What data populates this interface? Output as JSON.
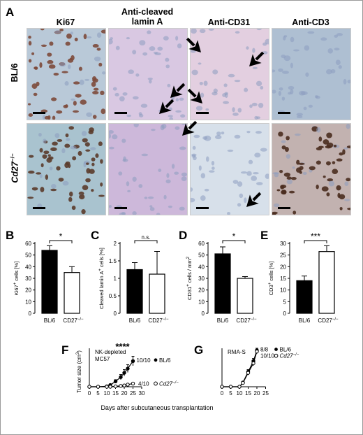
{
  "panel_a": {
    "label": "A",
    "columns": [
      "Ki67",
      "Anti-cleaved lamin A",
      "Anti-CD31",
      "Anti-CD3"
    ],
    "column_head_lines": [
      [
        "Ki67"
      ],
      [
        "Anti-cleaved",
        "lamin A"
      ],
      [
        "Anti-CD31"
      ],
      [
        "Anti-CD3"
      ]
    ],
    "rows": [
      {
        "main": "BL/6",
        "sup": ""
      },
      {
        "main": "Cd27",
        "sup": "−/−"
      }
    ]
  },
  "chart_data": [
    {
      "panel": "B",
      "type": "bar",
      "categories": [
        "BL/6",
        "CD27−/−"
      ],
      "values": [
        54,
        35
      ],
      "errors": [
        4,
        5
      ],
      "ylabel": "Ki67+ cells [%]",
      "ylim": [
        0,
        60
      ],
      "yticks": [
        0,
        10,
        20,
        30,
        40,
        50,
        60
      ],
      "significance": "*"
    },
    {
      "panel": "C",
      "type": "bar",
      "categories": [
        "BL/6",
        "CD27−/−"
      ],
      "values": [
        1.25,
        1.12
      ],
      "errors": [
        0.2,
        0.65
      ],
      "ylabel": "Cleaved lamin A+ cells [%]",
      "ylim": [
        0,
        2.0
      ],
      "yticks": [
        0,
        0.5,
        1.0,
        1.5,
        2.0
      ],
      "significance": "n.s."
    },
    {
      "panel": "D",
      "type": "bar",
      "categories": [
        "BL/6",
        "CD27−/−"
      ],
      "values": [
        51,
        30
      ],
      "errors": [
        6,
        1.5
      ],
      "ylabel": "CD31+ cells / mm2",
      "ylim": [
        0,
        60
      ],
      "yticks": [
        0,
        10,
        20,
        30,
        40,
        50,
        60
      ],
      "significance": "*"
    },
    {
      "panel": "E",
      "type": "bar",
      "categories": [
        "BL/6",
        "CD27−/−"
      ],
      "values": [
        14,
        26.5
      ],
      "errors": [
        2,
        2.5
      ],
      "ylabel": "CD3+ cells [%]",
      "ylim": [
        0,
        30
      ],
      "yticks": [
        0,
        5,
        10,
        15,
        20,
        25,
        30
      ],
      "significance": "***"
    },
    {
      "panel": "F",
      "type": "line",
      "x": [
        0,
        5,
        10,
        12,
        15,
        18,
        20,
        22,
        25
      ],
      "xticks": [
        0,
        5,
        10,
        15,
        20,
        25,
        30
      ],
      "ylabel": "Tumor size (cm3)",
      "annotation": "NK-depleted MC57",
      "significance": "****",
      "series": [
        {
          "name": "BL/6",
          "count": "10/10",
          "y": [
            0,
            0,
            0.02,
            0.08,
            0.25,
            0.45,
            0.65,
            0.85,
            1.2
          ],
          "err": [
            0,
            0,
            0.02,
            0.05,
            0.08,
            0.12,
            0.15,
            0.18,
            0.22
          ]
        },
        {
          "name": "Cd27−/−",
          "count": "4/10",
          "y": [
            0,
            0,
            0,
            0,
            0.02,
            0.04,
            0.06,
            0.1,
            0.15
          ],
          "err": [
            0,
            0,
            0,
            0,
            0.01,
            0.02,
            0.02,
            0.03,
            0.04
          ]
        }
      ]
    },
    {
      "panel": "G",
      "type": "line",
      "x": [
        0,
        5,
        10,
        12,
        15,
        18,
        20
      ],
      "xticks": [
        0,
        5,
        10,
        15,
        20,
        25
      ],
      "annotation": "RMA-S",
      "series": [
        {
          "name": "BL/6",
          "count": "8/8",
          "y": [
            0,
            0,
            0,
            0.2,
            0.7,
            1.2,
            1.7
          ],
          "err": [
            0,
            0,
            0,
            0.05,
            0.1,
            0.12,
            0.1
          ]
        },
        {
          "name": "Cd27−/−",
          "count": "10/10",
          "y": [
            0,
            0,
            0,
            0.18,
            0.65,
            1.1,
            1.65
          ],
          "err": [
            0,
            0,
            0,
            0.05,
            0.1,
            0.12,
            0.1
          ]
        }
      ]
    }
  ],
  "fg": {
    "xlabel": "Days after subcutaneous transplantation"
  }
}
